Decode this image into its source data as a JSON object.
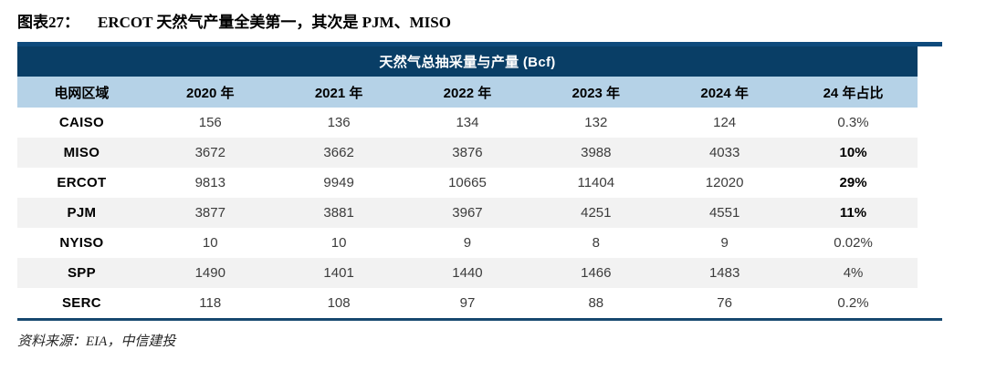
{
  "header": {
    "figure_label": "图表27：",
    "figure_title": "ERCOT 天然气产量全美第一，其次是 PJM、MISO"
  },
  "table": {
    "caption": "天然气总抽采量与产量 (Bcf)",
    "columns": [
      "电网区域",
      "2020 年",
      "2021 年",
      "2022 年",
      "2023 年",
      "2024 年",
      "24 年占比"
    ],
    "rows": [
      {
        "region": "CAISO",
        "cells": [
          "156",
          "136",
          "134",
          "132",
          "124",
          "0.3%"
        ]
      },
      {
        "region": "MISO",
        "cells": [
          "3672",
          "3662",
          "3876",
          "3988",
          "4033",
          "10%"
        ]
      },
      {
        "region": "ERCOT",
        "cells": [
          "9813",
          "9949",
          "10665",
          "11404",
          "12020",
          "29%"
        ]
      },
      {
        "region": "PJM",
        "cells": [
          "3877",
          "3881",
          "3967",
          "4251",
          "4551",
          "11%"
        ]
      },
      {
        "region": "NYISO",
        "cells": [
          "10",
          "10",
          "9",
          "8",
          "9",
          "0.02%"
        ]
      },
      {
        "region": "SPP",
        "cells": [
          "1490",
          "1401",
          "1440",
          "1466",
          "1483",
          "4%"
        ]
      },
      {
        "region": "SERC",
        "cells": [
          "118",
          "108",
          "97",
          "88",
          "76",
          "0.2%"
        ]
      }
    ]
  },
  "footer": {
    "source_note": "资料来源：EIA，中信建投"
  },
  "colors": {
    "band_navy": "#093e66",
    "rule_blue": "#0e4a7c",
    "header_light_blue": "#b5d2e7",
    "zebra_gray": "#f2f2f2"
  }
}
